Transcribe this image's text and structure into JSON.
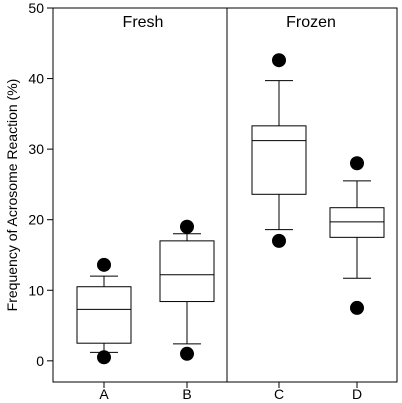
{
  "chart_data": {
    "type": "box",
    "ylabel": "Frequency of Acrosome Reaction (%)",
    "ylim": [
      -3,
      50
    ],
    "yticks": [
      0,
      10,
      20,
      30,
      40,
      50
    ],
    "categories": [
      "A",
      "B",
      "C",
      "D"
    ],
    "panels": [
      {
        "label": "Fresh",
        "categories": [
          "A",
          "B"
        ]
      },
      {
        "label": "Frozen",
        "categories": [
          "C",
          "D"
        ]
      }
    ],
    "boxes": [
      {
        "category": "A",
        "whisker_low": 1.2,
        "q1": 2.5,
        "median": 7.3,
        "q3": 10.5,
        "whisker_high": 12.0,
        "outliers": [
          0.5,
          13.6
        ]
      },
      {
        "category": "B",
        "whisker_low": 2.4,
        "q1": 8.4,
        "median": 12.2,
        "q3": 17.0,
        "whisker_high": 18.0,
        "outliers": [
          1.0,
          19.0
        ]
      },
      {
        "category": "C",
        "whisker_low": 18.6,
        "q1": 23.6,
        "median": 31.2,
        "q3": 33.3,
        "whisker_high": 39.7,
        "outliers": [
          17.0,
          42.6
        ]
      },
      {
        "category": "D",
        "whisker_low": 11.7,
        "q1": 17.5,
        "median": 19.7,
        "q3": 21.7,
        "whisker_high": 25.5,
        "outliers": [
          7.5,
          28.0
        ]
      }
    ],
    "grid": false,
    "legend": "none"
  }
}
